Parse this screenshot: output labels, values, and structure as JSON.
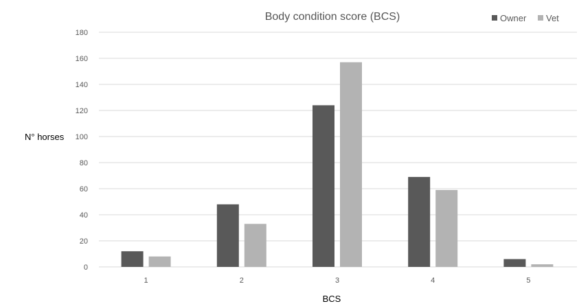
{
  "chart_data": {
    "type": "bar",
    "title": "Body condition score (BCS)",
    "xlabel": "BCS",
    "ylabel": "N° horses",
    "categories": [
      "1",
      "2",
      "3",
      "4",
      "5"
    ],
    "series": [
      {
        "name": "Owner",
        "color": "#595959",
        "values": [
          12,
          48,
          124,
          69,
          6
        ]
      },
      {
        "name": "Vet",
        "color": "#b3b3b3",
        "values": [
          8,
          33,
          157,
          59,
          2
        ]
      }
    ],
    "ylim": [
      0,
      180
    ],
    "yticks": [
      0,
      20,
      40,
      60,
      80,
      100,
      120,
      140,
      160,
      180
    ],
    "grid": true,
    "legend_position": "top-right"
  }
}
